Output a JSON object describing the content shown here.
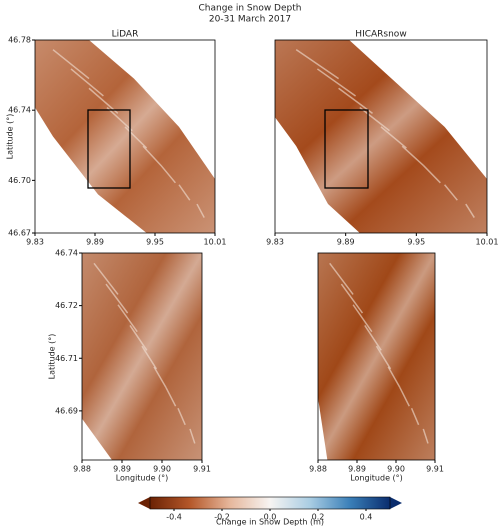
{
  "title": "Change in Snow Depth",
  "subtitle": "20-31 March 2017",
  "chart_data": [
    {
      "type": "image",
      "title": "LiDAR",
      "color": "#b4643a",
      "xlim": [
        9.83,
        10.01
      ],
      "ylim": [
        46.67,
        46.78
      ],
      "xticks": [
        9.83,
        9.89,
        9.95,
        10.01
      ],
      "yticks": [
        46.67,
        {
          "value": 46.7,
          "label": "46.70"
        },
        46.74,
        46.78
      ],
      "ylabel": "Latitude (°)"
    },
    {
      "type": "image",
      "title": "HICARsnow",
      "color": "#a44a1c",
      "xlim": [
        9.83,
        10.01
      ],
      "ylim": [
        46.67,
        46.78
      ],
      "xticks": [
        9.83,
        9.89,
        9.95,
        10.01
      ],
      "yticks": []
    },
    {
      "type": "image",
      "color": "#b0643c",
      "xlim": [
        9.88,
        9.91
      ],
      "ylim": [
        46.678,
        46.737
      ],
      "xticks": [
        9.88,
        9.89,
        {
          "value": 9.9,
          "label": "9.90"
        },
        9.91
      ],
      "yticks": [
        {
          "value": 46.692,
          "label": "46.69"
        },
        {
          "value": 46.707,
          "label": "46.71"
        },
        {
          "value": 46.722,
          "label": "46.72"
        },
        {
          "value": 46.737,
          "label": "46.74"
        }
      ],
      "xlabel": "Longitude (°)",
      "ylabel": "Latitude (°)"
    },
    {
      "type": "image",
      "color": "#a04818",
      "xlim": [
        9.88,
        9.91
      ],
      "ylim": [
        46.678,
        46.737
      ],
      "xticks": [
        9.88,
        9.89,
        {
          "value": 9.9,
          "label": "9.90"
        },
        9.91
      ],
      "yticks": [],
      "xlabel": "Longitude (°)"
    }
  ],
  "colorbar": {
    "label": "Change in Snow Depth (m)",
    "lim": [
      -0.5,
      0.5
    ],
    "ticks": [
      -0.4,
      -0.2,
      {
        "value": 0,
        "label": "0.0"
      },
      0.2,
      0.4
    ],
    "colors": [
      "#6b2204",
      "#b5582a",
      "#e6b79c",
      "#f7f4f2",
      "#a9cde3",
      "#3a7fb8",
      "#0a2d6e"
    ]
  }
}
